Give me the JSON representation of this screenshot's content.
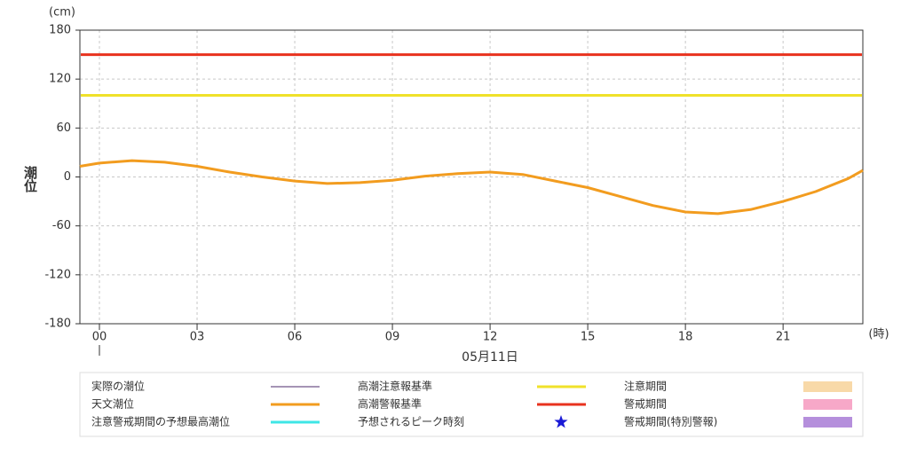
{
  "chart_data": {
    "type": "line",
    "y_unit": "(cm)",
    "x_unit": "(時)",
    "y_label": "潮位",
    "date_label": "05月11日",
    "ylim": [
      -180,
      180
    ],
    "yticks": [
      -180,
      -120,
      -60,
      0,
      60,
      120,
      180
    ],
    "xlim": [
      -0.6,
      23.45
    ],
    "xticks": [
      {
        "value": 0,
        "label": "00"
      },
      {
        "value": 3,
        "label": "03"
      },
      {
        "value": 6,
        "label": "06"
      },
      {
        "value": 9,
        "label": "09"
      },
      {
        "value": 12,
        "label": "12"
      },
      {
        "value": 15,
        "label": "15"
      },
      {
        "value": 18,
        "label": "18"
      },
      {
        "value": 21,
        "label": "21"
      }
    ],
    "grid": true,
    "series": [
      {
        "name": "天文潮位",
        "color": "#f29c1f",
        "x": [
          -0.6,
          0,
          1,
          2,
          3,
          4,
          5,
          6,
          7,
          8,
          9,
          10,
          11,
          12,
          13,
          14,
          15,
          16,
          17,
          18,
          19,
          20,
          21,
          22,
          23,
          23.45
        ],
        "values": [
          13,
          17,
          20,
          18,
          13,
          6,
          0,
          -5,
          -8,
          -7,
          -4,
          1,
          4,
          6,
          3,
          -5,
          -13,
          -24,
          -35,
          -43,
          -45,
          -40,
          -30,
          -18,
          -2,
          8
        ]
      }
    ],
    "reference_lines": [
      {
        "name": "高潮注意報基準",
        "color": "#f0e12a",
        "value": 100
      },
      {
        "name": "高潮警報基準",
        "color": "#e8321e",
        "value": 150
      }
    ],
    "legend": [
      {
        "name": "実際の潮位",
        "color": "#4b2a6b",
        "kind": "thin"
      },
      {
        "name": "天文潮位",
        "color": "#f29c1f",
        "kind": "line"
      },
      {
        "name": "注意警戒期間の予想最高潮位",
        "color": "#3ee6e6",
        "kind": "line"
      },
      {
        "name": "高潮注意報基準",
        "color": "#f0e12a",
        "kind": "line"
      },
      {
        "name": "高潮警報基準",
        "color": "#e8321e",
        "kind": "line"
      },
      {
        "name": "予想されるピーク時刻",
        "color": "#1a1ad6",
        "kind": "star"
      },
      {
        "name": "注意期間",
        "color": "#f8d9a8",
        "kind": "box"
      },
      {
        "name": "警戒期間",
        "color": "#f7a8c8",
        "kind": "box"
      },
      {
        "name": "警戒期間(特別警報)",
        "color": "#b58fdc",
        "kind": "box"
      }
    ]
  }
}
